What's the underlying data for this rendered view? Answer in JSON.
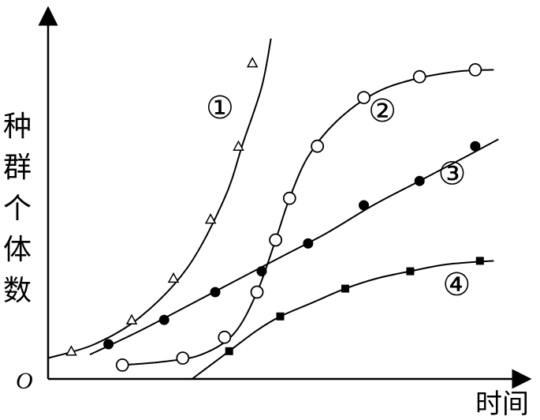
{
  "chart_data": {
    "type": "line",
    "ylabel": "种群个体数",
    "xlabel": "时间",
    "origin_label": "O",
    "grid": false,
    "xlim": [
      0,
      100
    ],
    "ylim": [
      0,
      100
    ],
    "series": [
      {
        "name": "①",
        "marker": "triangle-open",
        "points": [
          [
            5,
            8
          ],
          [
            18,
            17
          ],
          [
            27,
            29
          ],
          [
            35,
            46
          ],
          [
            41,
            67
          ],
          [
            44,
            91
          ]
        ],
        "curve": [
          [
            0,
            6
          ],
          [
            10,
            10
          ],
          [
            20,
            18
          ],
          [
            30,
            32
          ],
          [
            38,
            52
          ],
          [
            42,
            68
          ],
          [
            46,
            84
          ],
          [
            48,
            98
          ]
        ]
      },
      {
        "name": "②",
        "marker": "circle-open",
        "points": [
          [
            16,
            4
          ],
          [
            29,
            6
          ],
          [
            38,
            12
          ],
          [
            45,
            25
          ],
          [
            49,
            40
          ],
          [
            52,
            52
          ],
          [
            58,
            67
          ],
          [
            68,
            81
          ],
          [
            80,
            87
          ],
          [
            92,
            89
          ]
        ],
        "curve": [
          [
            16,
            4
          ],
          [
            25,
            5
          ],
          [
            33,
            7
          ],
          [
            40,
            13
          ],
          [
            45,
            25
          ],
          [
            49,
            40
          ],
          [
            52,
            52
          ],
          [
            56,
            64
          ],
          [
            62,
            74
          ],
          [
            70,
            82
          ],
          [
            78,
            86
          ],
          [
            88,
            88.5
          ],
          [
            96,
            89
          ]
        ]
      },
      {
        "name": "③",
        "marker": "circle-filled",
        "points": [
          [
            13,
            10
          ],
          [
            25,
            17
          ],
          [
            36,
            25
          ],
          [
            46,
            31
          ],
          [
            56,
            39
          ],
          [
            68,
            50
          ],
          [
            80,
            57
          ],
          [
            92,
            67
          ]
        ],
        "curve": [
          [
            9,
            7
          ],
          [
            20,
            14
          ],
          [
            30,
            21
          ],
          [
            40,
            28
          ],
          [
            50,
            35
          ],
          [
            60,
            42
          ],
          [
            70,
            50
          ],
          [
            80,
            57
          ],
          [
            90,
            64
          ],
          [
            97,
            69
          ]
        ]
      },
      {
        "name": "④",
        "marker": "square-filled",
        "points": [
          [
            39,
            8
          ],
          [
            50,
            18
          ],
          [
            64,
            26
          ],
          [
            78,
            31
          ],
          [
            93,
            34
          ]
        ],
        "curve": [
          [
            31,
            0
          ],
          [
            34,
            3
          ],
          [
            39,
            8
          ],
          [
            45,
            14
          ],
          [
            50,
            18
          ],
          [
            57,
            22
          ],
          [
            64,
            26
          ],
          [
            71,
            29
          ],
          [
            78,
            31
          ],
          [
            86,
            33
          ],
          [
            96,
            34
          ]
        ]
      }
    ],
    "label_positions": [
      {
        "series": "①",
        "x": 37,
        "y": 78
      },
      {
        "series": "②",
        "x": 72,
        "y": 77
      },
      {
        "series": "③",
        "x": 87,
        "y": 59
      },
      {
        "series": "④",
        "x": 88,
        "y": 27
      }
    ]
  }
}
